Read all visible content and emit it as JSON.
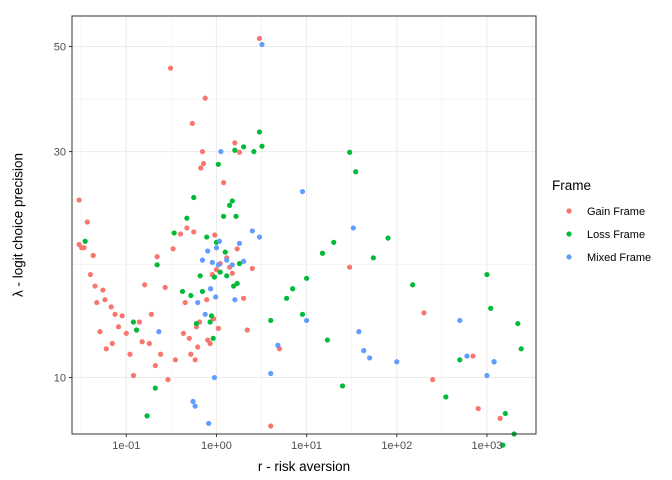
{
  "chart_data": {
    "type": "scatter",
    "xlabel": "r - risk aversion",
    "ylabel": "λ - logit choice precision",
    "x_scale": "log10",
    "y_scale": "log10",
    "xlim": [
      0.025,
      3500
    ],
    "ylim": [
      7.6,
      58
    ],
    "x_ticks": [
      0.1,
      1,
      10,
      100,
      1000
    ],
    "x_tick_labels": [
      "1e-01",
      "1e+00",
      "1e+01",
      "1e+02",
      "1e+03"
    ],
    "y_ticks": [
      10,
      30,
      50
    ],
    "y_tick_labels": [
      "10",
      "30",
      "50"
    ],
    "grid": true,
    "legend": {
      "title": "Frame",
      "position": "right"
    },
    "series": [
      {
        "name": "Gain Frame",
        "color": "#F8766D",
        "points": [
          [
            0.03,
            23.7
          ],
          [
            0.03,
            19.1
          ],
          [
            0.032,
            18.8
          ],
          [
            0.034,
            18.8
          ],
          [
            0.037,
            21.3
          ],
          [
            0.04,
            16.5
          ],
          [
            0.043,
            18.1
          ],
          [
            0.045,
            15.6
          ],
          [
            0.047,
            14.4
          ],
          [
            0.051,
            12.5
          ],
          [
            0.055,
            15.3
          ],
          [
            0.058,
            14.6
          ],
          [
            0.06,
            11.5
          ],
          [
            0.068,
            14.1
          ],
          [
            0.07,
            11.8
          ],
          [
            0.075,
            13.6
          ],
          [
            0.082,
            12.8
          ],
          [
            0.09,
            13.5
          ],
          [
            0.1,
            12.4
          ],
          [
            0.11,
            11.2
          ],
          [
            0.12,
            10.1
          ],
          [
            0.13,
            12.6
          ],
          [
            0.14,
            13.1
          ],
          [
            0.15,
            11.9
          ],
          [
            0.16,
            15.7
          ],
          [
            0.18,
            11.8
          ],
          [
            0.19,
            13.6
          ],
          [
            0.21,
            10.6
          ],
          [
            0.22,
            18.0
          ],
          [
            0.24,
            11.2
          ],
          [
            0.27,
            15.5
          ],
          [
            0.29,
            9.9
          ],
          [
            0.31,
            45.0
          ],
          [
            0.33,
            18.7
          ],
          [
            0.35,
            10.9
          ],
          [
            0.4,
            20.1
          ],
          [
            0.43,
            12.4
          ],
          [
            0.45,
            14.4
          ],
          [
            0.47,
            20.7
          ],
          [
            0.5,
            12.1
          ],
          [
            0.52,
            11.2
          ],
          [
            0.54,
            34.4
          ],
          [
            0.56,
            20.3
          ],
          [
            0.58,
            10.9
          ],
          [
            0.6,
            12.8
          ],
          [
            0.62,
            11.6
          ],
          [
            0.65,
            13.1
          ],
          [
            0.67,
            27.7
          ],
          [
            0.7,
            30.0
          ],
          [
            0.72,
            28.3
          ],
          [
            0.75,
            38.9
          ],
          [
            0.78,
            14.6
          ],
          [
            0.8,
            12.0
          ],
          [
            0.85,
            11.8
          ],
          [
            0.9,
            16.5
          ],
          [
            0.93,
            13.3
          ],
          [
            0.96,
            20.0
          ],
          [
            1.0,
            16.9
          ],
          [
            1.05,
            12.7
          ],
          [
            1.1,
            17.4
          ],
          [
            1.2,
            25.8
          ],
          [
            1.3,
            17.9
          ],
          [
            1.4,
            17.1
          ],
          [
            1.5,
            16.6
          ],
          [
            1.6,
            31.3
          ],
          [
            1.7,
            18.7
          ],
          [
            1.8,
            29.9
          ],
          [
            2.0,
            14.7
          ],
          [
            2.2,
            12.6
          ],
          [
            2.5,
            17.0
          ],
          [
            3.0,
            52.0
          ],
          [
            4.0,
            7.9
          ],
          [
            5.0,
            11.5
          ],
          [
            30.0,
            17.1
          ],
          [
            200.0,
            13.7
          ],
          [
            250.0,
            9.9
          ],
          [
            700.0,
            11.1
          ],
          [
            800.0,
            8.6
          ],
          [
            1400.0,
            8.2
          ]
        ]
      },
      {
        "name": "Loss Frame",
        "color": "#00BA38",
        "points": [
          [
            0.035,
            19.4
          ],
          [
            0.12,
            13.1
          ],
          [
            0.13,
            12.6
          ],
          [
            0.17,
            8.3
          ],
          [
            0.21,
            9.5
          ],
          [
            0.22,
            17.3
          ],
          [
            0.34,
            20.2
          ],
          [
            0.42,
            15.2
          ],
          [
            0.47,
            21.7
          ],
          [
            0.52,
            14.9
          ],
          [
            0.56,
            24.0
          ],
          [
            0.6,
            13.0
          ],
          [
            0.66,
            16.4
          ],
          [
            0.7,
            15.2
          ],
          [
            0.78,
            19.8
          ],
          [
            0.85,
            13.1
          ],
          [
            0.88,
            13.5
          ],
          [
            0.92,
            12.1
          ],
          [
            0.95,
            16.3
          ],
          [
            1.0,
            19.3
          ],
          [
            1.05,
            28.2
          ],
          [
            1.1,
            16.7
          ],
          [
            1.2,
            21.9
          ],
          [
            1.25,
            18.4
          ],
          [
            1.3,
            16.4
          ],
          [
            1.4,
            23.1
          ],
          [
            1.5,
            23.6
          ],
          [
            1.55,
            15.6
          ],
          [
            1.6,
            30.2
          ],
          [
            1.65,
            21.9
          ],
          [
            1.7,
            15.8
          ],
          [
            1.8,
            17.4
          ],
          [
            2.0,
            30.7
          ],
          [
            2.6,
            30.0
          ],
          [
            3.0,
            33.0
          ],
          [
            3.2,
            30.8
          ],
          [
            4.0,
            13.2
          ],
          [
            6.0,
            14.7
          ],
          [
            7.0,
            15.4
          ],
          [
            9.0,
            13.6
          ],
          [
            10.0,
            16.2
          ],
          [
            15.0,
            18.3
          ],
          [
            17.0,
            12.0
          ],
          [
            20.0,
            19.3
          ],
          [
            25.0,
            9.6
          ],
          [
            30.0,
            29.9
          ],
          [
            35.0,
            27.2
          ],
          [
            55.0,
            17.9
          ],
          [
            80.0,
            19.7
          ],
          [
            150.0,
            15.7
          ],
          [
            350.0,
            9.1
          ],
          [
            500.0,
            10.9
          ],
          [
            1000.0,
            16.5
          ],
          [
            1100.0,
            14.0
          ],
          [
            1200.0,
            10.8
          ],
          [
            1500.0,
            7.2
          ],
          [
            1600.0,
            8.4
          ],
          [
            2000.0,
            7.6
          ],
          [
            2200.0,
            13.0
          ],
          [
            2400.0,
            11.5
          ]
        ]
      },
      {
        "name": "Mixed Frame",
        "color": "#619CFF",
        "points": [
          [
            0.23,
            12.5
          ],
          [
            0.55,
            8.9
          ],
          [
            0.58,
            8.7
          ],
          [
            0.62,
            14.4
          ],
          [
            0.7,
            17.7
          ],
          [
            0.75,
            13.6
          ],
          [
            0.8,
            18.5
          ],
          [
            0.82,
            8.0
          ],
          [
            0.86,
            15.4
          ],
          [
            0.9,
            17.5
          ],
          [
            0.95,
            10.0
          ],
          [
            0.98,
            14.8
          ],
          [
            1.0,
            18.8
          ],
          [
            1.05,
            17.3
          ],
          [
            1.08,
            19.4
          ],
          [
            1.12,
            30.0
          ],
          [
            1.3,
            17.7
          ],
          [
            1.5,
            17.3
          ],
          [
            1.6,
            14.6
          ],
          [
            1.8,
            19.2
          ],
          [
            2.0,
            17.6
          ],
          [
            2.5,
            20.4
          ],
          [
            3.0,
            19.8
          ],
          [
            3.2,
            50.5
          ],
          [
            4.0,
            10.2
          ],
          [
            4.8,
            11.7
          ],
          [
            9.0,
            24.7
          ],
          [
            10.0,
            13.2
          ],
          [
            33.0,
            20.7
          ],
          [
            38.0,
            12.5
          ],
          [
            43.0,
            11.4
          ],
          [
            50.0,
            11.0
          ],
          [
            100.0,
            10.8
          ],
          [
            500.0,
            13.2
          ],
          [
            600.0,
            11.1
          ],
          [
            1000.0,
            10.1
          ],
          [
            1200.0,
            10.8
          ]
        ]
      }
    ]
  }
}
